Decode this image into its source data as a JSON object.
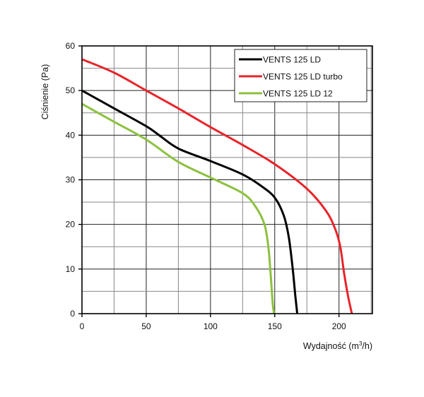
{
  "chart_data": {
    "type": "line",
    "title": "",
    "xlabel": "Wydajność (m³/h)",
    "ylabel": "Ciśnienie (Pa)",
    "xlim": [
      0,
      226
    ],
    "ylim": [
      0,
      60
    ],
    "x_ticks": [
      0,
      50,
      100,
      150,
      200
    ],
    "x_tick_labels": [
      "0",
      "50",
      "100",
      "150",
      "200"
    ],
    "y_ticks": [
      0,
      10,
      20,
      30,
      40,
      50,
      60
    ],
    "y_tick_labels": [
      "0",
      "10",
      "20",
      "30",
      "40",
      "50",
      "60"
    ],
    "x_grid_step": 25,
    "y_grid_step": 5,
    "grid": true,
    "legend_position": "top-right",
    "series": [
      {
        "name": "VENTS 125 LD",
        "color": "#000000",
        "x": [
          0,
          25,
          50,
          60,
          75,
          100,
          125,
          140,
          150,
          157,
          161,
          164,
          166,
          167.5
        ],
        "y": [
          50,
          46,
          42,
          40,
          37,
          34.2,
          31.2,
          28.5,
          26,
          22,
          17,
          10,
          4,
          0
        ]
      },
      {
        "name": "VENTS 125 LD turbo",
        "color": "#e8242a",
        "x": [
          0,
          25,
          50,
          75,
          100,
          125,
          150,
          175,
          190,
          197,
          201,
          204,
          207,
          210
        ],
        "y": [
          57,
          54,
          50,
          46,
          41.8,
          37.8,
          33.5,
          28,
          23,
          19,
          15,
          9,
          4,
          0
        ]
      },
      {
        "name": "VENTS 125 LD  12",
        "color": "#8cc13f",
        "x": [
          0,
          25,
          50,
          75,
          100,
          125,
          135,
          142,
          145,
          146.5,
          147.5,
          148.5,
          149.5
        ],
        "y": [
          47,
          43,
          39,
          34,
          30.5,
          27,
          24,
          20,
          15,
          10,
          6,
          2,
          0
        ]
      }
    ]
  }
}
